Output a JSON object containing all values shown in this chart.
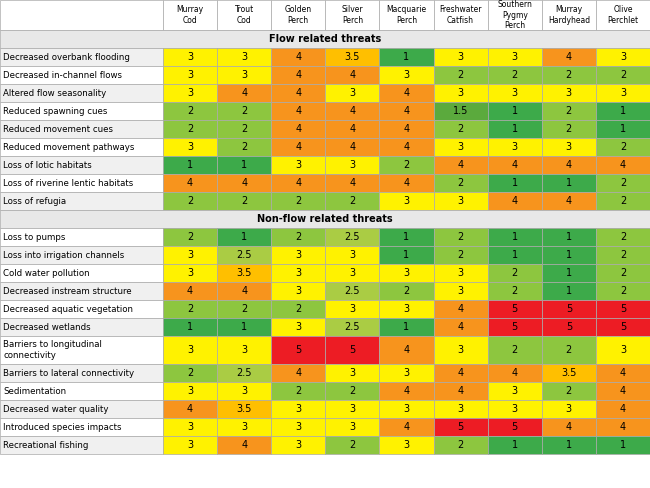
{
  "col_headers": [
    "Murray\nCod",
    "Trout\nCod",
    "Golden\nPerch",
    "Silver\nPerch",
    "Macquarie\nPerch",
    "Freshwater\nCatfish",
    "Southern\nPygmy\nPerch",
    "Murray\nHardyhead",
    "Olive\nPerchlet"
  ],
  "row_groups": [
    {
      "header": "Flow related threats",
      "rows": [
        {
          "label": "Decreased overbank flooding",
          "values": [
            3,
            3,
            4,
            3.5,
            1,
            3,
            3,
            4,
            3
          ]
        },
        {
          "label": "Decreased in-channel flows",
          "values": [
            3,
            3,
            4,
            4,
            3,
            2,
            2,
            2,
            2
          ]
        },
        {
          "label": "Altered flow seasonality",
          "values": [
            3,
            4,
            4,
            3,
            4,
            3,
            3,
            3,
            3
          ]
        },
        {
          "label": "Reduced spawning cues",
          "values": [
            2,
            2,
            4,
            4,
            4,
            1.5,
            1,
            2,
            1
          ]
        },
        {
          "label": "Reduced movement cues",
          "values": [
            2,
            2,
            4,
            4,
            4,
            2,
            1,
            2,
            1
          ]
        },
        {
          "label": "Reduced movement pathways",
          "values": [
            3,
            2,
            4,
            4,
            4,
            3,
            3,
            3,
            2
          ]
        },
        {
          "label": "Loss of lotic habitats",
          "values": [
            1,
            1,
            3,
            3,
            2,
            4,
            4,
            4,
            4
          ]
        },
        {
          "label": "Loss of riverine lentic habitats",
          "values": [
            4,
            4,
            4,
            4,
            4,
            2,
            1,
            1,
            2
          ]
        },
        {
          "label": "Loss of refugia",
          "values": [
            2,
            2,
            2,
            2,
            3,
            3,
            4,
            4,
            2
          ]
        }
      ]
    },
    {
      "header": "Non-flow related threats",
      "rows": [
        {
          "label": "Loss to pumps",
          "values": [
            2,
            1,
            2,
            2.5,
            1,
            2,
            1,
            1,
            2
          ]
        },
        {
          "label": "Loss into irrigation channels",
          "values": [
            3,
            2.5,
            3,
            3,
            1,
            2,
            1,
            1,
            2
          ]
        },
        {
          "label": "Cold water pollution",
          "values": [
            3,
            3.5,
            3,
            3,
            3,
            3,
            2,
            1,
            2
          ]
        },
        {
          "label": "Decreased instream structure",
          "values": [
            4,
            4,
            3,
            2.5,
            2,
            3,
            2,
            1,
            2
          ]
        },
        {
          "label": "Decreased aquatic vegetation",
          "values": [
            2,
            2,
            2,
            3,
            3,
            4,
            5,
            5,
            5
          ]
        },
        {
          "label": "Decreased wetlands",
          "values": [
            1,
            1,
            3,
            2.5,
            1,
            4,
            5,
            5,
            5
          ]
        },
        {
          "label": "Barriers to longitudinal\nconnectivity",
          "values": [
            3,
            3,
            5,
            5,
            4,
            3,
            2,
            2,
            3
          ]
        },
        {
          "label": "Barriers to lateral connectivity",
          "values": [
            2,
            2.5,
            4,
            3,
            3,
            4,
            4,
            3.5,
            4
          ]
        },
        {
          "label": "Sedimentation",
          "values": [
            3,
            3,
            2,
            2,
            4,
            4,
            3,
            2,
            4
          ]
        },
        {
          "label": "Decreased water quality",
          "values": [
            4,
            3.5,
            3,
            3,
            3,
            3,
            3,
            3,
            4
          ]
        },
        {
          "label": "Introduced species impacts",
          "values": [
            3,
            3,
            3,
            3,
            4,
            5,
            5,
            4,
            4
          ]
        },
        {
          "label": "Recreational fishing",
          "values": [
            3,
            4,
            3,
            2,
            3,
            2,
            1,
            1,
            1
          ]
        }
      ]
    }
  ],
  "colors": {
    "1": "#3DAA4A",
    "1.5": "#5BAA3D",
    "2": "#8DC63F",
    "2.5": "#AACC44",
    "3": "#FFF200",
    "3.5": "#FFBF00",
    "4": "#F7941D",
    "5": "#ED1C24"
  },
  "col_header_bg": "#FFFFFF",
  "group_header_bg": "#E8E8E8",
  "label_bg_odd": "#F0F0F0",
  "label_bg_even": "#FFFFFF",
  "border_color": "#AAAAAA",
  "text_color": "#000000"
}
